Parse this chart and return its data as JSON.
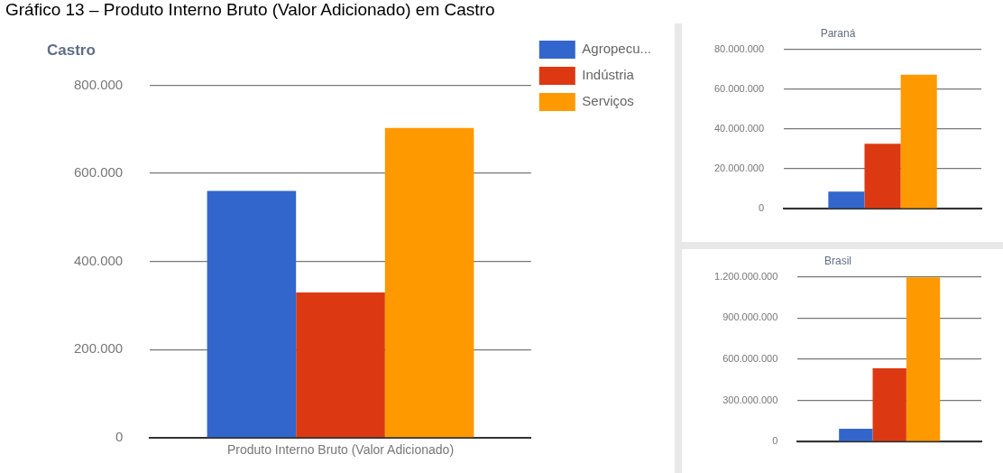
{
  "chart_data": [
    {
      "type": "bar",
      "title": "Castro",
      "annotations": [
        "Gráfico 13 – Produto Interno Bruto (Valor Adicionado) em Castro"
      ],
      "categories": [
        "Produto Interno Bruto (Valor Adicionado)"
      ],
      "series": [
        {
          "name": "Agropecu...",
          "color": "#3366cc",
          "values": [
            560000
          ]
        },
        {
          "name": "Indústria",
          "color": "#dc3912",
          "values": [
            330000
          ]
        },
        {
          "name": "Serviços",
          "color": "#ff9900",
          "values": [
            703000
          ]
        }
      ],
      "ylim": [
        0,
        800000
      ],
      "yticks": [
        {
          "value": 0,
          "label": "0"
        },
        {
          "value": 200000,
          "label": "200.000"
        },
        {
          "value": 400000,
          "label": "400.000"
        },
        {
          "value": 600000,
          "label": "600.000"
        },
        {
          "value": 800000,
          "label": "800.000"
        }
      ],
      "grid": "y",
      "legend": "right"
    },
    {
      "type": "bar",
      "title": "Paraná",
      "categories": [
        null
      ],
      "series": [
        {
          "color": "#3366cc",
          "values": [
            8600000
          ]
        },
        {
          "color": "#dc3912",
          "values": [
            32600000
          ]
        },
        {
          "color": "#ff9900",
          "values": [
            67200000
          ]
        }
      ],
      "ylim": [
        0,
        80000000
      ],
      "yticks": [
        {
          "value": 0,
          "label": "0"
        },
        {
          "value": 20000000,
          "label": "20.000.000"
        },
        {
          "value": 40000000,
          "label": "40.000.000"
        },
        {
          "value": 60000000,
          "label": "60.000.000"
        },
        {
          "value": 80000000,
          "label": "80.000.000"
        }
      ],
      "grid": "y"
    },
    {
      "type": "bar",
      "title": "Brasil",
      "categories": [
        null
      ],
      "series": [
        {
          "color": "#3366cc",
          "values": [
            93000000
          ]
        },
        {
          "color": "#dc3912",
          "values": [
            533000000
          ]
        },
        {
          "color": "#ff9900",
          "values": [
            1195000000
          ]
        }
      ],
      "ylim": [
        0,
        1200000000
      ],
      "yticks": [
        {
          "value": 0,
          "label": "0"
        },
        {
          "value": 300000000,
          "label": "300.000.000"
        },
        {
          "value": 600000000,
          "label": "600.000.000"
        },
        {
          "value": 900000000,
          "label": "900.000.000"
        },
        {
          "value": 1200000000,
          "label": "1.200.000.000"
        }
      ],
      "grid": "y"
    }
  ]
}
